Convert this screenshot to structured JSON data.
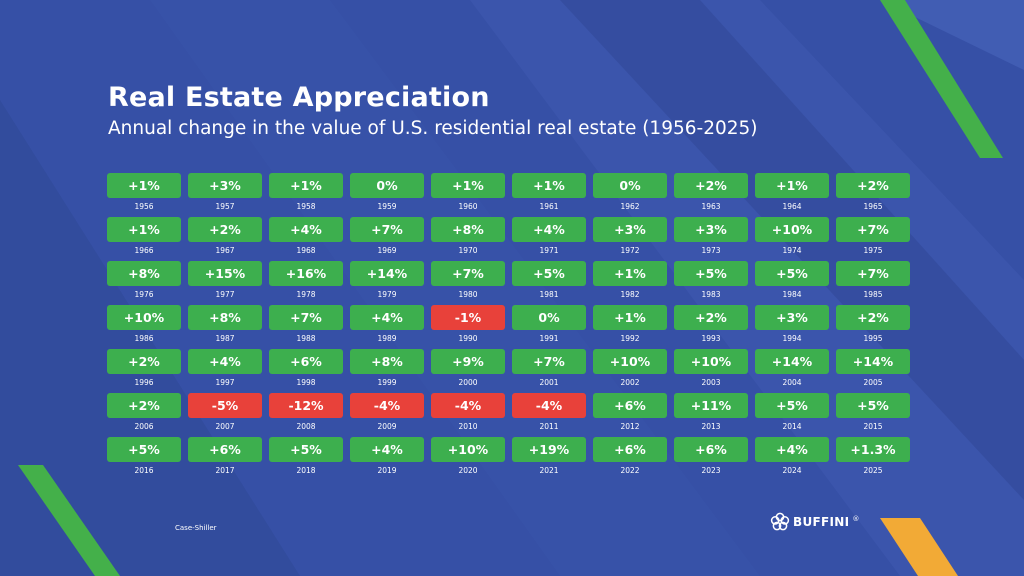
{
  "title": "Real Estate Appreciation",
  "subtitle": "Annual change in the value of U.S. residential real estate (1956-2025)",
  "source": "Case-Shiller",
  "logo": {
    "text": "BUFFINI",
    "mark": "®",
    "icon": "flower-logo-icon"
  },
  "colors": {
    "background": "#3650a6",
    "positive": "#3daf4e",
    "negative": "#e8413a",
    "accent_green": "#44b04a",
    "accent_orange": "#f2aa36"
  },
  "chart_data": {
    "type": "table",
    "title": "Real Estate Appreciation",
    "subtitle": "Annual change in the value of U.S. residential real estate (1956-2025)",
    "cells": [
      {
        "year": "1956",
        "label": "+1%",
        "value": 1
      },
      {
        "year": "1957",
        "label": "+3%",
        "value": 3
      },
      {
        "year": "1958",
        "label": "+1%",
        "value": 1
      },
      {
        "year": "1959",
        "label": "0%",
        "value": 0
      },
      {
        "year": "1960",
        "label": "+1%",
        "value": 1
      },
      {
        "year": "1961",
        "label": "+1%",
        "value": 1
      },
      {
        "year": "1962",
        "label": "0%",
        "value": 0
      },
      {
        "year": "1963",
        "label": "+2%",
        "value": 2
      },
      {
        "year": "1964",
        "label": "+1%",
        "value": 1
      },
      {
        "year": "1965",
        "label": "+2%",
        "value": 2
      },
      {
        "year": "1966",
        "label": "+1%",
        "value": 1
      },
      {
        "year": "1967",
        "label": "+2%",
        "value": 2
      },
      {
        "year": "1968",
        "label": "+4%",
        "value": 4
      },
      {
        "year": "1969",
        "label": "+7%",
        "value": 7
      },
      {
        "year": "1970",
        "label": "+8%",
        "value": 8
      },
      {
        "year": "1971",
        "label": "+4%",
        "value": 4
      },
      {
        "year": "1972",
        "label": "+3%",
        "value": 3
      },
      {
        "year": "1973",
        "label": "+3%",
        "value": 3
      },
      {
        "year": "1974",
        "label": "+10%",
        "value": 10
      },
      {
        "year": "1975",
        "label": "+7%",
        "value": 7
      },
      {
        "year": "1976",
        "label": "+8%",
        "value": 8
      },
      {
        "year": "1977",
        "label": "+15%",
        "value": 15
      },
      {
        "year": "1978",
        "label": "+16%",
        "value": 16
      },
      {
        "year": "1979",
        "label": "+14%",
        "value": 14
      },
      {
        "year": "1980",
        "label": "+7%",
        "value": 7
      },
      {
        "year": "1981",
        "label": "+5%",
        "value": 5
      },
      {
        "year": "1982",
        "label": "+1%",
        "value": 1
      },
      {
        "year": "1983",
        "label": "+5%",
        "value": 5
      },
      {
        "year": "1984",
        "label": "+5%",
        "value": 5
      },
      {
        "year": "1985",
        "label": "+7%",
        "value": 7
      },
      {
        "year": "1986",
        "label": "+10%",
        "value": 10
      },
      {
        "year": "1987",
        "label": "+8%",
        "value": 8
      },
      {
        "year": "1988",
        "label": "+7%",
        "value": 7
      },
      {
        "year": "1989",
        "label": "+4%",
        "value": 4
      },
      {
        "year": "1990",
        "label": "-1%",
        "value": -1
      },
      {
        "year": "1991",
        "label": "0%",
        "value": 0
      },
      {
        "year": "1992",
        "label": "+1%",
        "value": 1
      },
      {
        "year": "1993",
        "label": "+2%",
        "value": 2
      },
      {
        "year": "1994",
        "label": "+3%",
        "value": 3
      },
      {
        "year": "1995",
        "label": "+2%",
        "value": 2
      },
      {
        "year": "1996",
        "label": "+2%",
        "value": 2
      },
      {
        "year": "1997",
        "label": "+4%",
        "value": 4
      },
      {
        "year": "1998",
        "label": "+6%",
        "value": 6
      },
      {
        "year": "1999",
        "label": "+8%",
        "value": 8
      },
      {
        "year": "2000",
        "label": "+9%",
        "value": 9
      },
      {
        "year": "2001",
        "label": "+7%",
        "value": 7
      },
      {
        "year": "2002",
        "label": "+10%",
        "value": 10
      },
      {
        "year": "2003",
        "label": "+10%",
        "value": 10
      },
      {
        "year": "2004",
        "label": "+14%",
        "value": 14
      },
      {
        "year": "2005",
        "label": "+14%",
        "value": 14
      },
      {
        "year": "2006",
        "label": "+2%",
        "value": 2
      },
      {
        "year": "2007",
        "label": "-5%",
        "value": -5
      },
      {
        "year": "2008",
        "label": "-12%",
        "value": -12
      },
      {
        "year": "2009",
        "label": "-4%",
        "value": -4
      },
      {
        "year": "2010",
        "label": "-4%",
        "value": -4
      },
      {
        "year": "2011",
        "label": "-4%",
        "value": -4
      },
      {
        "year": "2012",
        "label": "+6%",
        "value": 6
      },
      {
        "year": "2013",
        "label": "+11%",
        "value": 11
      },
      {
        "year": "2014",
        "label": "+5%",
        "value": 5
      },
      {
        "year": "2015",
        "label": "+5%",
        "value": 5
      },
      {
        "year": "2016",
        "label": "+5%",
        "value": 5
      },
      {
        "year": "2017",
        "label": "+6%",
        "value": 6
      },
      {
        "year": "2018",
        "label": "+5%",
        "value": 5
      },
      {
        "year": "2019",
        "label": "+4%",
        "value": 4
      },
      {
        "year": "2020",
        "label": "+10%",
        "value": 10
      },
      {
        "year": "2021",
        "label": "+19%",
        "value": 19
      },
      {
        "year": "2022",
        "label": "+6%",
        "value": 6
      },
      {
        "year": "2023",
        "label": "+6%",
        "value": 6
      },
      {
        "year": "2024",
        "label": "+4%",
        "value": 4
      },
      {
        "year": "2025",
        "label": "+1.3%",
        "value": 1.3
      }
    ]
  }
}
